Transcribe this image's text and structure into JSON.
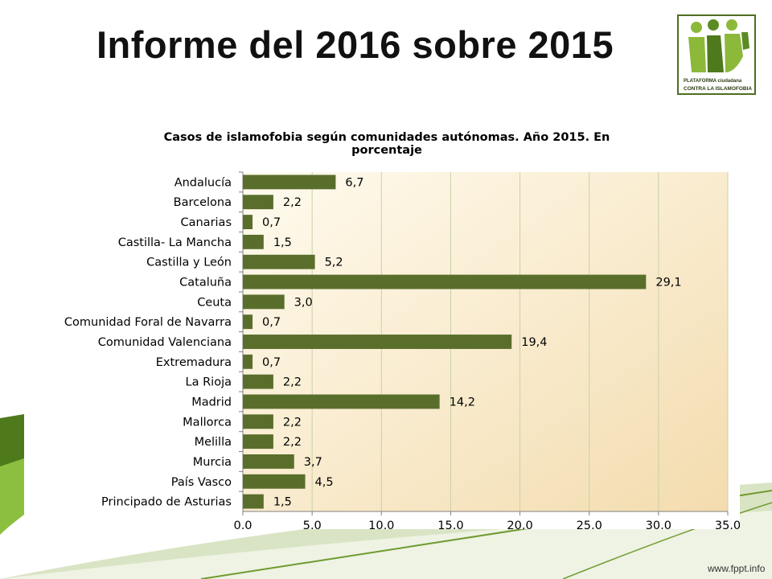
{
  "slide": {
    "title": "Informe del 2016 sobre 2015",
    "logo": {
      "line1": "PLATAFORMA ciudadana",
      "line2": "CONTRA LA ISLAMOFOBIA"
    },
    "website": "www.fppt.info"
  },
  "colors": {
    "bar": "#5a6e2c",
    "plot_bg_left": "#fef9e6",
    "plot_bg_right": "#f6dfb4",
    "grid": "#c9d1a8",
    "accent_green": "#5b8c23"
  },
  "chart_data": {
    "type": "bar",
    "orientation": "horizontal",
    "title": "Casos de islamofobia según comunidades autónomas. Año 2015. En porcentaje",
    "categories": [
      "Andalucía",
      "Barcelona",
      "Canarias",
      "Castilla- La Mancha",
      "Castilla y León",
      "Cataluña",
      "Ceuta",
      "Comunidad Foral de Navarra",
      "Comunidad Valenciana",
      "Extremadura",
      "La Rioja",
      "Madrid",
      "Mallorca",
      "Melilla",
      "Murcia",
      "País Vasco",
      "Principado de Asturias"
    ],
    "values": [
      6.7,
      2.2,
      0.7,
      1.5,
      5.2,
      29.1,
      3.0,
      0.7,
      19.4,
      0.7,
      2.2,
      14.2,
      2.2,
      2.2,
      3.7,
      4.5,
      1.5
    ],
    "value_labels": [
      "6,7",
      "2,2",
      "0,7",
      "1,5",
      "5,2",
      "29,1",
      "3,0",
      "0,7",
      "19,4",
      "0,7",
      "2,2",
      "14,2",
      "2,2",
      "2,2",
      "3,7",
      "4,5",
      "1,5"
    ],
    "xlim": [
      0,
      35
    ],
    "x_ticks": [
      "0,0",
      "5,0",
      "10,0",
      "15,0",
      "20,0",
      "25,0",
      "30,0",
      "35,0"
    ],
    "grid": true,
    "legend": "none"
  }
}
